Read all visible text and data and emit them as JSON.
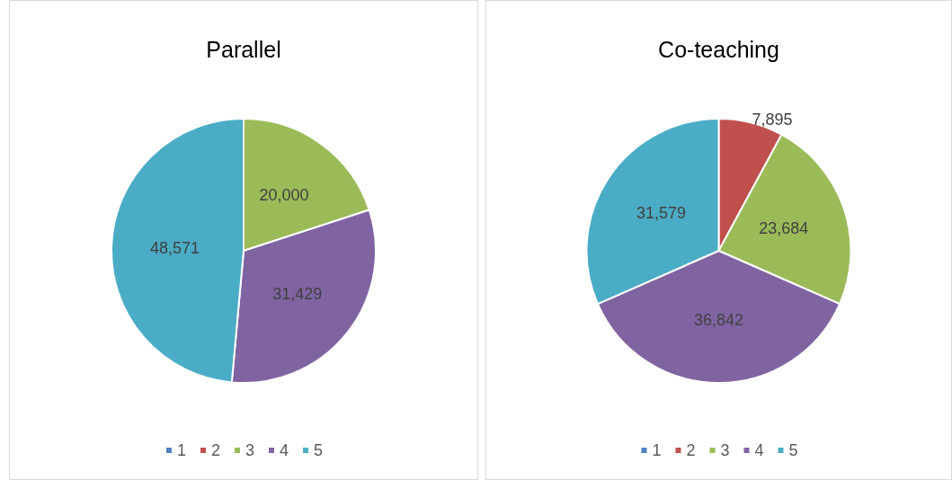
{
  "chart_data": [
    {
      "type": "pie",
      "title": "Parallel",
      "categories": [
        "1",
        "2",
        "3",
        "4",
        "5"
      ],
      "values": [
        0,
        0,
        20000,
        31429,
        48571
      ],
      "value_labels": [
        null,
        null,
        "20,000",
        "31,429",
        "48,571"
      ],
      "colors": [
        "#4f81bd",
        "#c0504d",
        "#9bbb59",
        "#8064a2",
        "#4bacc6"
      ],
      "legend": "bottom"
    },
    {
      "type": "pie",
      "title": "Co-teaching",
      "categories": [
        "1",
        "2",
        "3",
        "4",
        "5"
      ],
      "values": [
        0,
        7895,
        23684,
        36842,
        31579
      ],
      "value_labels": [
        null,
        "7,895",
        "23,684",
        "36,842",
        "31,579"
      ],
      "colors": [
        "#4f81bd",
        "#c0504d",
        "#9bbb59",
        "#8064a2",
        "#4bacc6"
      ],
      "legend": "bottom"
    }
  ]
}
